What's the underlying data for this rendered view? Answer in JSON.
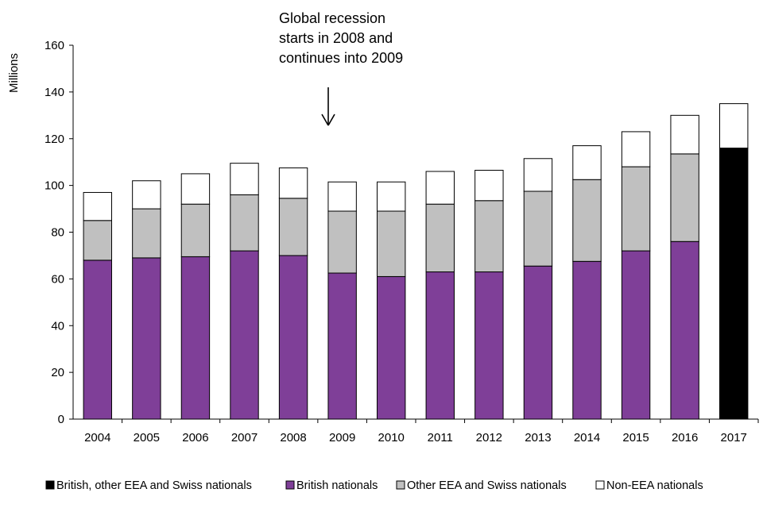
{
  "chart_data": {
    "type": "bar",
    "stacked": true,
    "ylabel": "Millions",
    "xlabel": "",
    "ylim": [
      0,
      160
    ],
    "yticks": [
      0,
      20,
      40,
      60,
      80,
      100,
      120,
      140,
      160
    ],
    "categories": [
      "2004",
      "2005",
      "2006",
      "2007",
      "2008",
      "2009",
      "2010",
      "2011",
      "2012",
      "2013",
      "2014",
      "2015",
      "2016",
      "2017"
    ],
    "series": [
      {
        "name": "British, other EEA and Swiss nationals",
        "color": "#000000",
        "values": [
          null,
          null,
          null,
          null,
          null,
          null,
          null,
          null,
          null,
          null,
          null,
          null,
          null,
          116
        ]
      },
      {
        "name": "British nationals",
        "color": "#7f3f98",
        "values": [
          68,
          69,
          69.5,
          72,
          70,
          62.5,
          61,
          63,
          63,
          65.5,
          67.5,
          72,
          76,
          null
        ]
      },
      {
        "name": "Other EEA and Swiss nationals",
        "color": "#c0c0c0",
        "values": [
          17,
          21,
          22.5,
          24,
          24.5,
          26.5,
          28,
          29,
          30.5,
          32,
          35,
          36,
          37.5,
          null
        ]
      },
      {
        "name": "Non-EEA nationals",
        "color": "#ffffff",
        "values": [
          12,
          12,
          13,
          13.5,
          13,
          12.5,
          12.5,
          14,
          13,
          14,
          14.5,
          15,
          16.5,
          19
        ]
      }
    ],
    "annotation": {
      "lines": [
        "Global recession",
        "starts in 2008 and",
        "continues into 2009"
      ],
      "points_to": "2009"
    },
    "legend_position": "bottom"
  }
}
